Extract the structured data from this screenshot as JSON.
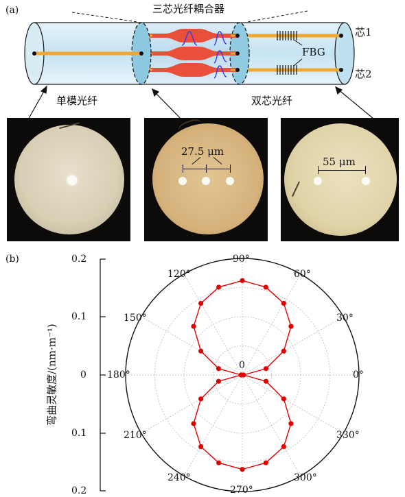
{
  "panel_a": {
    "label": "(a)",
    "coupler_label": "三芯光纤耦合器",
    "core1_label": "芯1",
    "core2_label": "芯2",
    "fbg_label": "FBG",
    "smf_label": "单模光纤",
    "dcf_label": "双芯光纤",
    "dim_275": "27.5 μm",
    "dim_55": "55 μm",
    "colors": {
      "fiber_body": "#cfe6f3",
      "fiber_end": "#8cc8e0",
      "core": "#f0a830",
      "coupler": "#e8503a",
      "mode": "#3a3ae8"
    }
  },
  "panel_b": {
    "label": "(b)",
    "ylabel": "弯曲灵敏度/(nm·m⁻¹)",
    "y_ticks": [
      "0.2",
      "0.1",
      "0",
      "0.1",
      "0.2"
    ],
    "angle_labels": [
      "0°",
      "30°",
      "60°",
      "90°",
      "120°",
      "150°",
      "180°",
      "210°",
      "240°",
      "270°",
      "300°",
      "330°"
    ],
    "center_label": "0"
  },
  "chart_data": {
    "type": "polar-line",
    "ylabel": "弯曲灵敏度/(nm·m⁻¹)",
    "r_range": [
      0,
      0.2
    ],
    "angle_unit": "degree",
    "angles": [
      0,
      15,
      30,
      45,
      60,
      75,
      90,
      105,
      120,
      135,
      150,
      165,
      180,
      195,
      210,
      225,
      240,
      255,
      270,
      285,
      300,
      315,
      330,
      345
    ],
    "series": [
      {
        "color": "#e00000",
        "values": [
          0.002,
          0.042,
          0.082,
          0.118,
          0.142,
          0.156,
          0.162,
          0.156,
          0.142,
          0.118,
          0.082,
          0.042,
          0.002,
          0.042,
          0.082,
          0.118,
          0.142,
          0.156,
          0.162,
          0.156,
          0.142,
          0.118,
          0.082,
          0.042
        ]
      }
    ]
  }
}
